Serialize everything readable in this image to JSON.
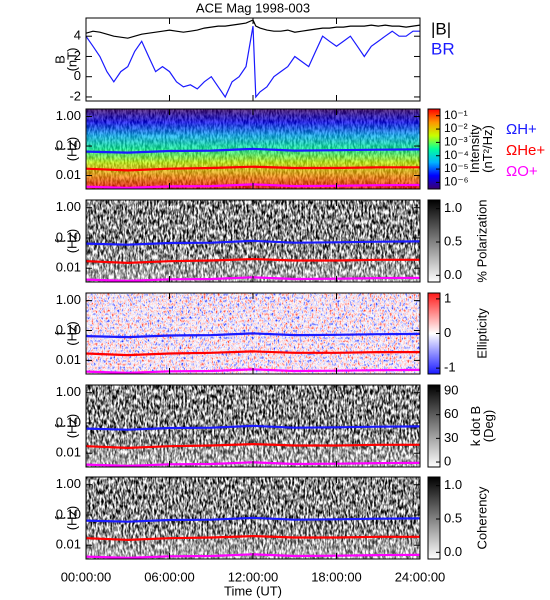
{
  "time_axis": {
    "label": "Time (UT)",
    "lim": [
      0,
      24
    ],
    "ticks": [
      {
        "value": 0,
        "label": "00:00:00"
      },
      {
        "value": 6,
        "label": "06:00:00"
      },
      {
        "value": 12,
        "label": "12:00:00"
      },
      {
        "value": 18,
        "label": "18:00:00"
      },
      {
        "value": 24,
        "label": "24:00:00"
      }
    ]
  },
  "chart_data": [
    {
      "type": "line",
      "title": "ACE Mag 1998-003",
      "ylabel": [
        "B",
        "(nT)"
      ],
      "ylim": [
        -2.4,
        5.8
      ],
      "yticks": [
        -2,
        0,
        2,
        4
      ],
      "x": [
        0,
        0.5,
        1,
        1.5,
        2,
        2.5,
        3,
        3.5,
        4,
        4.5,
        5,
        5.5,
        6,
        6.5,
        7,
        7.5,
        8,
        8.5,
        9,
        9.5,
        10,
        10.5,
        11,
        11.5,
        12,
        12.2,
        12.5,
        13,
        13.5,
        14,
        14.5,
        15,
        15.5,
        16,
        16.5,
        17,
        17.5,
        18,
        18.5,
        19,
        19.5,
        20,
        20.5,
        21,
        21.5,
        22,
        22.5,
        23,
        23.5,
        24
      ],
      "series": [
        {
          "name": "|B|",
          "color": "#000000",
          "values": [
            4.3,
            4.5,
            4.4,
            4.2,
            4.0,
            3.9,
            3.8,
            4.0,
            4.2,
            4.3,
            4.4,
            4.5,
            4.6,
            4.5,
            4.4,
            4.5,
            4.6,
            4.8,
            4.9,
            5.0,
            5.0,
            5.1,
            5.2,
            5.3,
            5.6,
            5.0,
            4.8,
            4.6,
            4.5,
            4.5,
            4.6,
            4.4,
            4.5,
            4.6,
            4.7,
            4.8,
            4.8,
            4.9,
            4.9,
            5.0,
            5.0,
            5.0,
            5.1,
            5.0,
            5.1,
            5.0,
            5.0,
            4.9,
            5.0,
            5.1
          ]
        },
        {
          "name": "BR",
          "color": "#1a1aff",
          "values": [
            4.0,
            3.0,
            2.0,
            0.5,
            -0.5,
            0.5,
            1.0,
            2.5,
            3.5,
            2.0,
            0.5,
            1.0,
            0.5,
            -0.5,
            -1.0,
            -0.8,
            -1.2,
            -0.5,
            0.0,
            -1.0,
            -2.0,
            -0.5,
            0.0,
            1.0,
            5.0,
            -2.0,
            -1.5,
            -1.0,
            0.0,
            0.5,
            1.0,
            2.0,
            1.5,
            1.0,
            2.5,
            4.0,
            3.5,
            3.0,
            3.5,
            4.0,
            3.0,
            2.0,
            3.0,
            3.5,
            4.0,
            4.5,
            4.0,
            4.0,
            4.5,
            4.5
          ]
        }
      ]
    },
    {
      "type": "spectrogram",
      "texture": "jet",
      "ylabel": [
        "f",
        "(Hz)"
      ],
      "ylog": true,
      "ylim": [
        0.0035,
        1.8
      ],
      "yticks": [
        {
          "value": 1,
          "label": "1.00"
        },
        {
          "value": 0.1,
          "label": "0.10"
        },
        {
          "value": 0.01,
          "label": "0.01"
        }
      ],
      "colorbar": {
        "label": [
          "Intensity",
          "(nT²/Hz)"
        ],
        "log": true,
        "lim": [
          3.2e-07,
          0.32
        ],
        "ticks": [
          {
            "value": 0.1,
            "label": "10⁻¹"
          },
          {
            "value": 0.01,
            "label": "10⁻²"
          },
          {
            "value": 0.001,
            "label": "10⁻³"
          },
          {
            "value": 0.0001,
            "label": "10⁻⁴"
          },
          {
            "value": 1e-05,
            "label": "10⁻⁵"
          },
          {
            "value": 1e-06,
            "label": "10⁻⁶"
          }
        ],
        "colormap": [
          "#3a006e",
          "#0000ff",
          "#00b4ff",
          "#00ff9c",
          "#c8ff00",
          "#ff9600",
          "#ff0000"
        ]
      },
      "x": [
        0,
        3,
        6,
        9,
        12,
        15,
        18,
        21,
        24
      ],
      "series": [
        {
          "name": "ΩH+",
          "color": "#1a1aff",
          "values": [
            0.065,
            0.06,
            0.068,
            0.07,
            0.08,
            0.07,
            0.072,
            0.075,
            0.077
          ]
        },
        {
          "name": "ΩHe+",
          "color": "#ff0000",
          "values": [
            0.017,
            0.015,
            0.017,
            0.018,
            0.02,
            0.018,
            0.018,
            0.019,
            0.019
          ]
        },
        {
          "name": "ΩO+",
          "color": "#ff00ff",
          "values": [
            0.0042,
            0.0038,
            0.0043,
            0.0044,
            0.005,
            0.0044,
            0.0045,
            0.0047,
            0.0048
          ]
        }
      ]
    },
    {
      "type": "spectrogram",
      "texture": "gray",
      "overlay_lines": true,
      "ylabel": [
        "f",
        "(Hz)"
      ],
      "ylog": true,
      "ylim": [
        0.0035,
        1.8
      ],
      "yticks": [
        {
          "value": 1,
          "label": "1.00"
        },
        {
          "value": 0.1,
          "label": "0.10"
        },
        {
          "value": 0.01,
          "label": "0.01"
        }
      ],
      "colorbar": {
        "label": [
          "% Polarization"
        ],
        "lim": [
          -0.1,
          1.13
        ],
        "ticks": [
          {
            "value": 0,
            "label": "0.0"
          },
          0.5,
          {
            "value": 1,
            "label": "1.0"
          }
        ],
        "colormap": [
          "#ffffff",
          "#000000"
        ]
      }
    },
    {
      "type": "spectrogram",
      "texture": "diverging",
      "overlay_lines": true,
      "ylabel": [
        "f",
        "(Hz)"
      ],
      "ylog": true,
      "ylim": [
        0.0035,
        1.8
      ],
      "yticks": [
        {
          "value": 1,
          "label": "1.00"
        },
        {
          "value": 0.1,
          "label": "0.10"
        },
        {
          "value": 0.01,
          "label": "0.01"
        }
      ],
      "colorbar": {
        "label": [
          "Ellipticity"
        ],
        "lim": [
          -1.17,
          1.17
        ],
        "ticks": [
          -1,
          0,
          1
        ],
        "colormap": [
          "#1a1aff",
          "#ffffff",
          "#ff1a1a"
        ]
      }
    },
    {
      "type": "spectrogram",
      "texture": "gray",
      "overlay_lines": true,
      "ylabel": [
        "f",
        "(Hz)"
      ],
      "ylog": true,
      "ylim": [
        0.0035,
        1.8
      ],
      "yticks": [
        {
          "value": 1,
          "label": "1.00"
        },
        {
          "value": 0.1,
          "label": "0.10"
        },
        {
          "value": 0.01,
          "label": "0.01"
        }
      ],
      "colorbar": {
        "label": [
          "k dot B",
          "(Deg)"
        ],
        "lim": [
          -6.3,
          97.6
        ],
        "ticks": [
          0,
          30,
          60,
          90
        ],
        "colormap": [
          "#ffffff",
          "#000000"
        ]
      }
    },
    {
      "type": "spectrogram",
      "texture": "gray",
      "overlay_lines": true,
      "ylabel": [
        "f",
        "(Hz)"
      ],
      "ylog": true,
      "ylim": [
        0.0035,
        1.8
      ],
      "yticks": [
        {
          "value": 1,
          "label": "1.00"
        },
        {
          "value": 0.1,
          "label": "0.10"
        },
        {
          "value": 0.01,
          "label": "0.01"
        }
      ],
      "colorbar": {
        "label": [
          "Coherency"
        ],
        "lim": [
          -0.1,
          1.13
        ],
        "ticks": [
          {
            "value": 0,
            "label": "0.0"
          },
          0.5,
          {
            "value": 1,
            "label": "1.0"
          }
        ],
        "colormap": [
          "#ffffff",
          "#000000"
        ]
      }
    }
  ]
}
